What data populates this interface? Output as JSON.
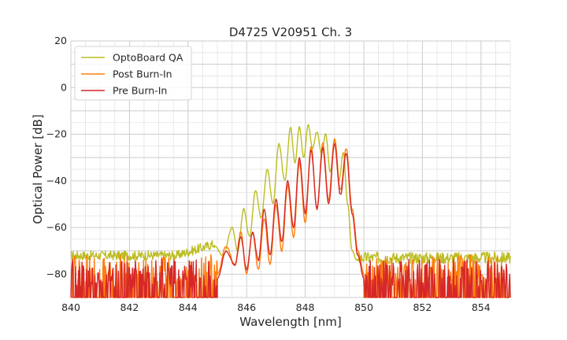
{
  "chart_data": {
    "type": "line",
    "title": "D4725 V20951 Ch. 3",
    "xlabel": "Wavelength [nm]",
    "ylabel": "Optical Power [dB]",
    "xlim": [
      840,
      855
    ],
    "ylim": [
      -90,
      20
    ],
    "xticks": [
      "840",
      "842",
      "844",
      "846",
      "848",
      "850",
      "852",
      "854"
    ],
    "yticks": [
      "20",
      "0",
      "−20",
      "−40",
      "−60",
      "−80"
    ],
    "grid": true,
    "legend_position": "upper-left",
    "series": [
      {
        "name": "OptoBoard QA",
        "color": "#bcbd22",
        "floor": {
          "x_start": 840,
          "x_end": 844.9,
          "level": -72,
          "rise_to": -67,
          "x_start_hi": 849.8,
          "x_end_hi": 855,
          "level_hi": -73
        },
        "x": [
          844.9,
          845.2,
          845.5,
          845.7,
          845.9,
          846.1,
          846.3,
          846.5,
          846.7,
          846.9,
          847.1,
          847.3,
          847.5,
          847.65,
          847.8,
          847.95,
          848.1,
          848.25,
          848.4,
          848.55,
          848.7,
          848.85,
          849.0,
          849.15,
          849.3,
          849.45,
          849.6,
          849.75,
          849.9
        ],
        "y": [
          -68,
          -72,
          -60,
          -70,
          -52,
          -64,
          -44,
          -56,
          -35,
          -50,
          -24,
          -40,
          -17,
          -32,
          -17,
          -30,
          -16,
          -26,
          -19,
          -28,
          -20,
          -36,
          -23,
          -40,
          -28,
          -50,
          -70,
          -74,
          -73
        ]
      },
      {
        "name": "Post Burn-In",
        "color": "#ff7f0e",
        "floor": {
          "x_start": 840,
          "x_end": 845.0,
          "level": -80,
          "x_start_hi": 850.0,
          "x_end_hi": 855,
          "level_hi": -80
        },
        "x": [
          845.0,
          845.3,
          845.6,
          845.8,
          846.0,
          846.2,
          846.4,
          846.6,
          846.8,
          847.0,
          847.2,
          847.4,
          847.6,
          847.8,
          848.0,
          848.2,
          848.4,
          848.6,
          848.8,
          849.0,
          849.2,
          849.4,
          849.6,
          849.8,
          850.0
        ],
        "y": [
          -80,
          -68,
          -76,
          -62,
          -80,
          -62,
          -78,
          -56,
          -76,
          -50,
          -70,
          -42,
          -64,
          -32,
          -58,
          -25,
          -52,
          -24,
          -48,
          -22,
          -44,
          -26,
          -52,
          -70,
          -80
        ]
      },
      {
        "name": "Pre Burn-In",
        "color": "#d62728",
        "floor": {
          "x_start": 840,
          "x_end": 845.0,
          "level": -82,
          "x_start_hi": 850.0,
          "x_end_hi": 855,
          "level_hi": -82
        },
        "x": [
          845.0,
          845.3,
          845.6,
          845.8,
          846.0,
          846.2,
          846.4,
          846.6,
          846.8,
          847.0,
          847.2,
          847.4,
          847.6,
          847.8,
          848.0,
          848.2,
          848.4,
          848.6,
          848.8,
          849.0,
          849.2,
          849.4,
          849.6,
          849.8,
          850.0
        ],
        "y": [
          -82,
          -70,
          -76,
          -64,
          -78,
          -62,
          -74,
          -52,
          -72,
          -48,
          -66,
          -40,
          -60,
          -30,
          -54,
          -27,
          -52,
          -26,
          -50,
          -24,
          -46,
          -28,
          -54,
          -72,
          -82
        ]
      }
    ]
  }
}
